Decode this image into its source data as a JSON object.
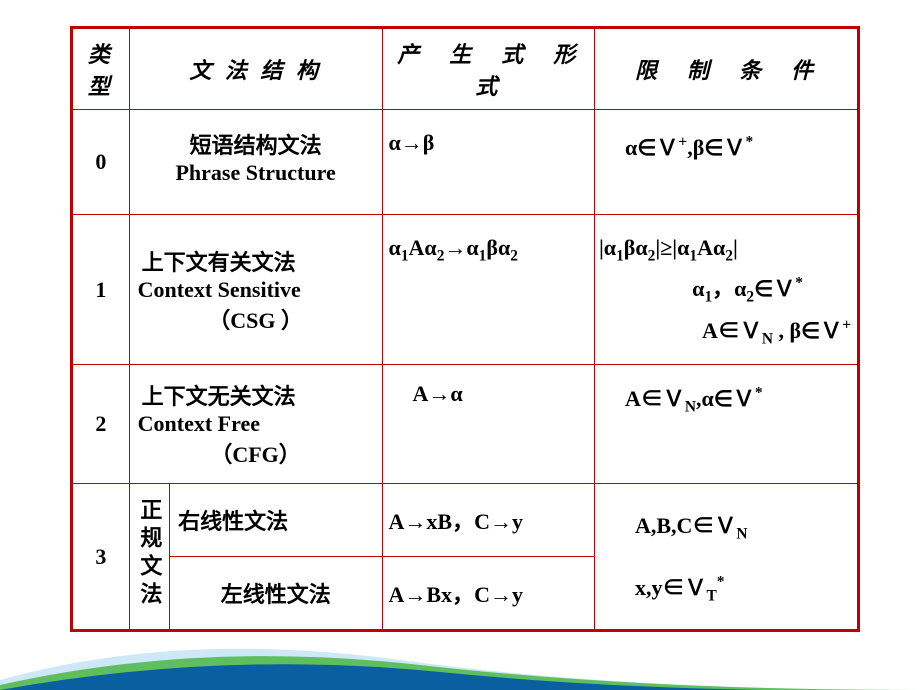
{
  "colors": {
    "border": "#c00000",
    "text": "#000000",
    "swoosh1": "#0a5fa0",
    "swoosh2": "#5fbf5f",
    "swoosh3": "#cde8f6"
  },
  "header": {
    "type": "类型",
    "structure": "文 法 结 构",
    "production": "产　生　式　形　式",
    "condition": "限　制　条　件"
  },
  "rows": {
    "r0": {
      "num": "0",
      "struct_cn": "短语结构文法",
      "struct_en": "Phrase Structure",
      "prod": "α→β",
      "cond_html": "α∈Ｖ<span class='sup'>+</span>,β∈Ｖ<span class='sup'>*</span>"
    },
    "r1": {
      "num": "1",
      "struct_cn": "上下文有关文法",
      "struct_en": "Context Sensitive",
      "struct_en2": "（CSG ）",
      "prod_html": "α<span class='sub'>1</span>Aα<span class='sub'>2</span>→α<span class='sub'>1</span>βα<span class='sub'>2</span>",
      "cond_l1": "|α<span class='sub'>1</span>βα<span class='sub'>2</span>|≥|α<span class='sub'>1</span>Aα<span class='sub'>2</span>|",
      "cond_l2": "α<span class='sub'>1</span>，α<span class='sub'>2</span>∈Ｖ<span class='sup'>*</span>",
      "cond_l3": "A∈Ｖ<span class='sub'>N</span>&nbsp;, β∈Ｖ<span class='sup'>+</span>"
    },
    "r2": {
      "num": "2",
      "struct_cn": "上下文无关文法",
      "struct_en": "Context Free",
      "struct_en2": "（CFG）",
      "prod": "A→α",
      "cond_html": "A∈Ｖ<span class='sub'>N</span>,α∈Ｖ<span class='sup'>*</span>"
    },
    "r3": {
      "num": "3",
      "vert": "正规文法",
      "right_cn": "右线性文法",
      "right_prod": "A→xB，C→y",
      "left_cn": "左线性文法",
      "left_prod": "A→Bx，C→y",
      "cond_l1": "A,B,C∈Ｖ<span class='sub'>N</span>",
      "cond_l2": "x,y∈Ｖ<span class='sub'>T</span><span class='sup'>*</span>"
    }
  }
}
